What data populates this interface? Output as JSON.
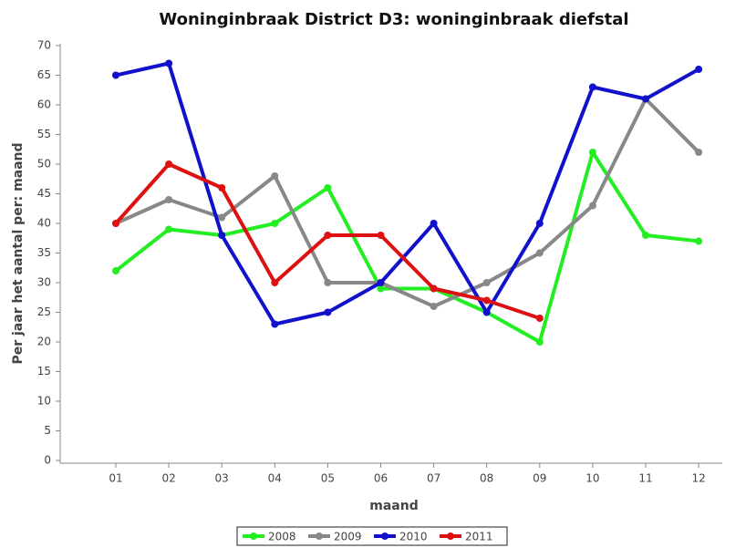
{
  "chart_data": {
    "type": "line",
    "title": "Woninginbraak District D3: woninginbraak diefstal",
    "x_label": "maand",
    "y_label": "Per jaar het aantal per: maand",
    "categories": [
      "01",
      "02",
      "03",
      "04",
      "05",
      "06",
      "07",
      "08",
      "09",
      "10",
      "11",
      "12"
    ],
    "series": [
      {
        "name": "2008",
        "color": "#22ee22",
        "values": [
          32,
          39,
          38,
          40,
          46,
          29,
          29,
          25,
          20,
          52,
          38,
          37
        ]
      },
      {
        "name": "2009",
        "color": "#888888",
        "values": [
          40,
          44,
          41,
          48,
          30,
          30,
          26,
          30,
          35,
          43,
          61,
          52
        ]
      },
      {
        "name": "2010",
        "color": "#1111cc",
        "values": [
          65,
          67,
          38,
          23,
          25,
          30,
          40,
          25,
          40,
          63,
          61,
          66
        ]
      },
      {
        "name": "2011",
        "color": "#dd1111",
        "values": [
          40,
          50,
          46,
          30,
          38,
          38,
          29,
          27,
          24,
          null,
          null,
          null
        ]
      }
    ],
    "ylim": [
      0,
      70
    ],
    "yticks": [
      0,
      5,
      10,
      15,
      20,
      25,
      30,
      35,
      40,
      45,
      50,
      55,
      60,
      65,
      70
    ],
    "grid": false,
    "legend": "bottom"
  }
}
